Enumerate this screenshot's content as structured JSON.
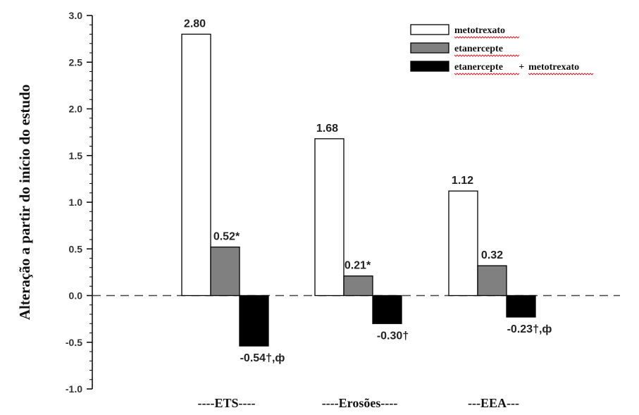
{
  "chart_data": {
    "type": "bar",
    "ylabel": "Alteração a partir do início do estudo",
    "xlabel": "",
    "ylim": [
      -1.0,
      3.0
    ],
    "yticks": [
      "3.0",
      "2.5",
      "2.0",
      "1.5",
      "1.0",
      "0.5",
      "0.0",
      "-0.5",
      "-1.0"
    ],
    "categories": [
      "----ETS----",
      "----Erosões----",
      "---EEA---"
    ],
    "series": [
      {
        "name": "metotrexato",
        "values": [
          2.8,
          1.68,
          1.12
        ],
        "labels": [
          "2.80",
          "1.68",
          "1.12"
        ],
        "color": "#ffffff"
      },
      {
        "name": "etanercepte",
        "values": [
          0.52,
          0.21,
          0.32
        ],
        "labels": [
          "0.52*",
          "0.21*",
          "0.32"
        ],
        "color": "#808080"
      },
      {
        "name": "etanercepte + metotrexato",
        "values": [
          -0.54,
          -0.3,
          -0.23
        ],
        "labels": [
          "-0.54†,ф",
          "-0.30†",
          "-0.23†,ф"
        ],
        "color": "#000000"
      }
    ],
    "legend": {
      "placement": "top-right",
      "entries": [
        {
          "parts": [
            "metotrexato"
          ]
        },
        {
          "parts": [
            "etanercepte"
          ]
        },
        {
          "parts": [
            "etanercepte",
            " + ",
            "metotrexato"
          ]
        }
      ]
    },
    "zero_line": "dashed",
    "grid": false
  }
}
